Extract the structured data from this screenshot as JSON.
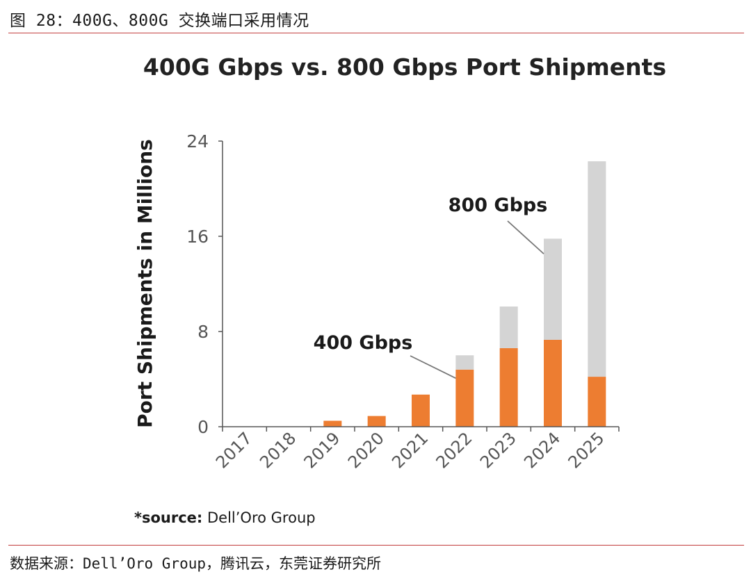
{
  "header": {
    "title": "图 28：400G、800G 交换端口采用情况"
  },
  "footer": {
    "source": "数据来源：Dell’Oro Group，腾讯云，东莞证券研究所"
  },
  "colors": {
    "series_400g": "#ED7D31",
    "series_800g": "#D4D4D4",
    "rule": "#C23B3B"
  },
  "chart_data": {
    "type": "bar",
    "stacked": true,
    "title": "400G Gbps vs. 800 Gbps Port Shipments",
    "ylabel": "Port Shipments in Millions",
    "xlabel": "",
    "ylim": [
      0,
      24
    ],
    "yticks": [
      0,
      8,
      16,
      24
    ],
    "categories": [
      "2017",
      "2018",
      "2019",
      "2020",
      "2021",
      "2022",
      "2023",
      "2024",
      "2025"
    ],
    "series": [
      {
        "name": "400 Gbps",
        "values": [
          0,
          0,
          0.5,
          0.9,
          2.7,
          4.8,
          6.6,
          7.3,
          4.2
        ]
      },
      {
        "name": "800 Gbps",
        "values": [
          0,
          0,
          0,
          0,
          0,
          1.2,
          3.5,
          8.5,
          18.1
        ]
      }
    ],
    "annotations": [
      {
        "text": "800 Gbps",
        "target_category": "2024",
        "target_series": "800 Gbps"
      },
      {
        "text": "400 Gbps",
        "target_category": "2022",
        "target_series": "400 Gbps"
      }
    ],
    "source_note": {
      "prefix": "*source:",
      "text": " Dell’Oro Group"
    }
  }
}
